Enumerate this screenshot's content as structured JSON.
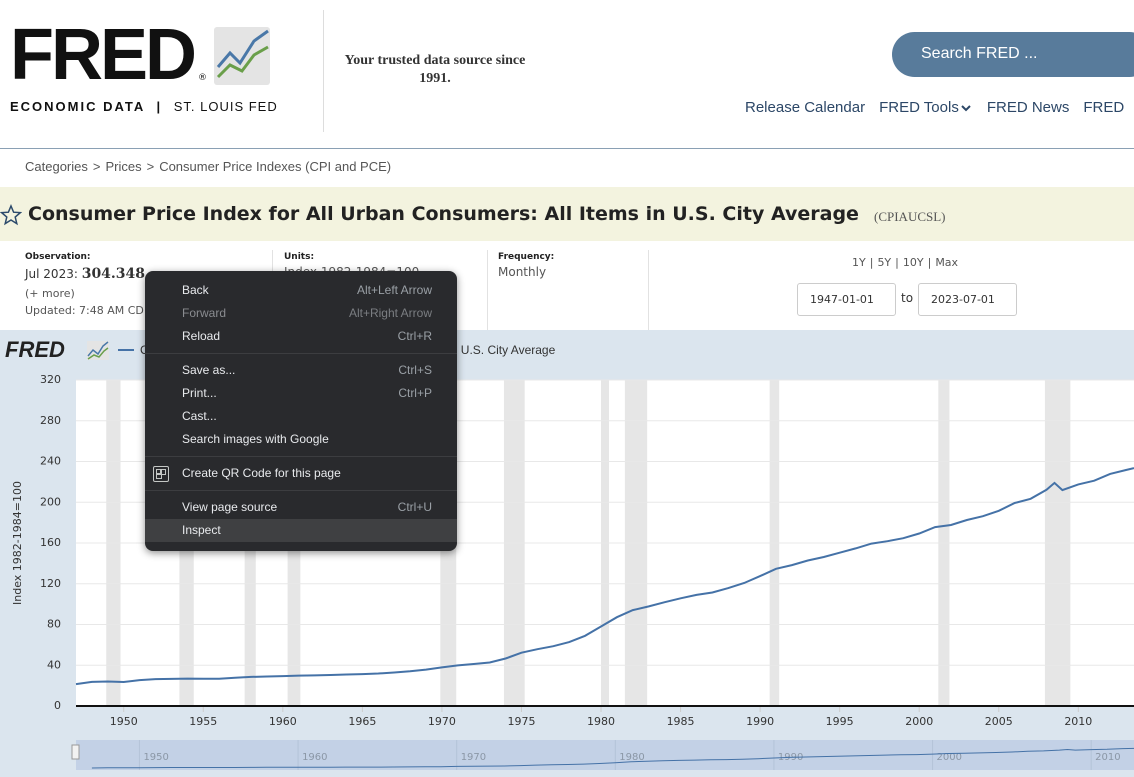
{
  "header": {
    "logo": "FRED",
    "logo_mark": "®",
    "logo_sub": "ECONOMIC DATA",
    "logo_divider": "|",
    "logo_org": "ST. LOUIS FED",
    "tagline": "Your trusted data source since 1991.",
    "search_placeholder": "Search FRED ...",
    "nav": [
      "Release Calendar",
      "FRED Tools",
      "FRED News",
      "FRED"
    ]
  },
  "breadcrumb": {
    "items": [
      "Categories",
      "Prices",
      "Consumer Price Indexes (CPI and PCE)"
    ],
    "separator": ">"
  },
  "series_title": "Consumer Price Index for All Urban Consumers: All Items in U.S. City Average",
  "series_id": "(CPIAUCSL)",
  "observation": {
    "label": "Observation:",
    "date": "Jul 2023:",
    "value": "304.348",
    "more": "(+ more)",
    "updated": "Updated: 7:48 AM CD"
  },
  "units": {
    "label": "Units:",
    "value": "Index 1982-1984=100"
  },
  "frequency": {
    "label": "Frequency:",
    "value": "Monthly"
  },
  "range": {
    "buttons": [
      "1Y",
      "5Y",
      "10Y",
      "Max"
    ],
    "separator": "|",
    "start": "1947-01-01",
    "to": "to",
    "end": "2023-07-01"
  },
  "chart_data": {
    "type": "line",
    "logo": "FRED",
    "y_label": "Index 1982-1984=100",
    "x": [
      1947,
      1948,
      1949,
      1950,
      1951,
      1952,
      1953,
      1954,
      1955,
      1956,
      1957,
      1958,
      1959,
      1960,
      1961,
      1962,
      1963,
      1964,
      1965,
      1966,
      1967,
      1968,
      1969,
      1970,
      1971,
      1972,
      1973,
      1974,
      1975,
      1976,
      1977,
      1978,
      1979,
      1980,
      1981,
      1982,
      1983,
      1984,
      1985,
      1986,
      1987,
      1988,
      1989,
      1990,
      1991,
      1992,
      1993,
      1994,
      1995,
      1996,
      1997,
      1998,
      1999,
      2000,
      2001,
      2002,
      2003,
      2004,
      2005,
      2006,
      2007,
      2008,
      2008.5,
      2009,
      2010,
      2011,
      2012,
      2013,
      2013.5
    ],
    "series": [
      {
        "name": "Consumer Price Index for All Urban Consumers: All Items in U.S. City Average",
        "color": "#4572a7",
        "values": [
          21.48,
          23.68,
          24.01,
          23.51,
          25.38,
          26.45,
          26.6,
          26.85,
          26.77,
          26.79,
          27.67,
          28.6,
          28.98,
          29.37,
          29.84,
          30.04,
          30.44,
          30.94,
          31.28,
          31.88,
          32.9,
          34.1,
          35.7,
          37.9,
          39.9,
          41.2,
          42.7,
          46.6,
          52.3,
          55.8,
          58.7,
          62.7,
          68.9,
          78.0,
          87.2,
          94.1,
          97.8,
          101.9,
          105.7,
          109.1,
          111.4,
          115.7,
          120.7,
          127.5,
          134.7,
          138.3,
          142.8,
          146.3,
          150.5,
          154.7,
          159.4,
          161.8,
          164.7,
          169.3,
          175.6,
          177.7,
          182.6,
          186.3,
          191.6,
          199.3,
          203.4,
          212.2,
          219.0,
          211.9,
          217.5,
          221.2,
          227.8,
          231.7,
          233.5
        ]
      }
    ],
    "xlim": [
      1947,
      2013.5
    ],
    "ylim": [
      0,
      320
    ],
    "xticks": [
      1950,
      1955,
      1960,
      1965,
      1970,
      1975,
      1980,
      1985,
      1990,
      1995,
      2000,
      2005,
      2010
    ],
    "yticks": [
      0,
      40,
      80,
      120,
      160,
      200,
      240,
      280,
      320
    ],
    "grid": true,
    "recession_color": "#e6e6e6",
    "recessions": [
      [
        1948.9,
        1949.8
      ],
      [
        1953.5,
        1954.4
      ],
      [
        1957.6,
        1958.3
      ],
      [
        1960.3,
        1961.1
      ],
      [
        1969.9,
        1970.9
      ],
      [
        1973.9,
        1975.2
      ],
      [
        1980.0,
        1980.5
      ],
      [
        1981.5,
        1982.9
      ],
      [
        1990.6,
        1991.2
      ],
      [
        2001.2,
        2001.9
      ],
      [
        2007.9,
        2009.5
      ]
    ],
    "navigator": {
      "xlim": [
        1946,
        2012.7
      ],
      "ylim": [
        0,
        320
      ],
      "xticks": [
        1950,
        1960,
        1970,
        1980,
        1990,
        2000,
        2010
      ]
    }
  },
  "context_menu": [
    [
      {
        "label": "Back",
        "shortcut": "Alt+Left Arrow"
      },
      {
        "label": "Forward",
        "shortcut": "Alt+Right Arrow",
        "disabled": true
      },
      {
        "label": "Reload",
        "shortcut": "Ctrl+R"
      }
    ],
    [
      {
        "label": "Save as...",
        "shortcut": "Ctrl+S"
      },
      {
        "label": "Print...",
        "shortcut": "Ctrl+P"
      },
      {
        "label": "Cast..."
      },
      {
        "label": "Search images with Google"
      }
    ],
    [
      {
        "label": "Create QR Code for this page",
        "icon": true
      }
    ],
    [
      {
        "label": "View page source",
        "shortcut": "Ctrl+U"
      },
      {
        "label": "Inspect",
        "highlighted": true
      }
    ]
  ]
}
